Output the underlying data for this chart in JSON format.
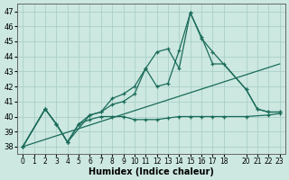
{
  "xlabel": "Humidex (Indice chaleur)",
  "ylabel": "",
  "xlim": [
    -0.5,
    23.5
  ],
  "ylim": [
    37.5,
    47.5
  ],
  "xticks": [
    0,
    1,
    2,
    3,
    4,
    5,
    6,
    7,
    8,
    9,
    10,
    11,
    12,
    13,
    14,
    15,
    16,
    17,
    18,
    20,
    21,
    22,
    23
  ],
  "yticks": [
    38,
    39,
    40,
    41,
    42,
    43,
    44,
    45,
    46,
    47
  ],
  "background_color": "#cce8e0",
  "grid_color": "#aacfc7",
  "line_color": "#1a6b5a",
  "line1_x": [
    0,
    2,
    3,
    4,
    5,
    6,
    7,
    8,
    9,
    10,
    11,
    12,
    13,
    14,
    15,
    16,
    17,
    20,
    21,
    22,
    23
  ],
  "line1_y": [
    38.0,
    40.5,
    39.5,
    38.3,
    39.5,
    40.1,
    40.3,
    40.8,
    41.0,
    41.5,
    43.2,
    44.3,
    44.5,
    43.2,
    46.9,
    45.2,
    44.3,
    41.8,
    40.5,
    40.3,
    40.3
  ],
  "line2_x": [
    0,
    2,
    3,
    4,
    6,
    7,
    8,
    9,
    10,
    11,
    12,
    13,
    14,
    15,
    16,
    17,
    18,
    20,
    21,
    22,
    23
  ],
  "line2_y": [
    38.0,
    40.5,
    39.5,
    38.3,
    40.1,
    40.3,
    41.2,
    41.5,
    42.0,
    43.2,
    42.0,
    42.2,
    44.4,
    46.9,
    45.3,
    43.5,
    43.5,
    41.8,
    40.5,
    40.3,
    40.3
  ],
  "line3_x": [
    0,
    2,
    3,
    4,
    5,
    6,
    7,
    8,
    9,
    10,
    11,
    12,
    13,
    14,
    15,
    16,
    17,
    18,
    20,
    22,
    23
  ],
  "line3_y": [
    38.0,
    40.5,
    39.5,
    38.3,
    39.5,
    39.8,
    40.0,
    40.0,
    40.0,
    39.8,
    39.8,
    39.8,
    39.9,
    40.0,
    40.0,
    40.0,
    40.0,
    40.0,
    40.0,
    40.1,
    40.2
  ]
}
